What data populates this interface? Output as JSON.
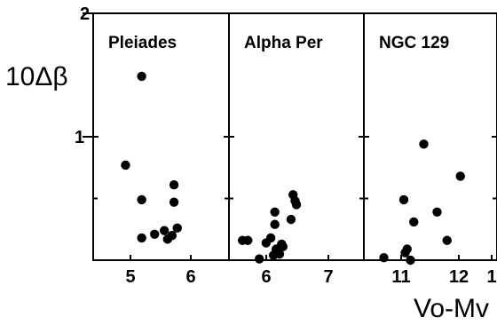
{
  "chart_data": {
    "type": "scatter",
    "ylabel": "10Δβ",
    "xlabel": "Vo-Mv",
    "y_ticks": [
      "2",
      "1"
    ],
    "ylim": [
      0,
      2
    ],
    "panels": [
      {
        "title": "Pleiades",
        "xlim": [
          4.5,
          6.6
        ],
        "x_ticks": [
          "5",
          "6"
        ],
        "points": [
          {
            "x": 5.0,
            "y": 0.77
          },
          {
            "x": 5.25,
            "y": 1.49
          },
          {
            "x": 5.25,
            "y": 0.49
          },
          {
            "x": 5.25,
            "y": 0.18
          },
          {
            "x": 5.45,
            "y": 0.21
          },
          {
            "x": 5.6,
            "y": 0.24
          },
          {
            "x": 5.65,
            "y": 0.17
          },
          {
            "x": 5.72,
            "y": 0.2
          },
          {
            "x": 5.75,
            "y": 0.47
          },
          {
            "x": 5.75,
            "y": 0.61
          },
          {
            "x": 5.8,
            "y": 0.26
          }
        ]
      },
      {
        "title": "Alpha Per",
        "xlim": [
          5.6,
          7.6
        ],
        "x_ticks": [
          "6",
          "7"
        ],
        "points": [
          {
            "x": 5.8,
            "y": 0.16
          },
          {
            "x": 5.88,
            "y": 0.16
          },
          {
            "x": 6.05,
            "y": 0.01
          },
          {
            "x": 6.15,
            "y": 0.14
          },
          {
            "x": 6.22,
            "y": 0.18
          },
          {
            "x": 6.26,
            "y": 0.04
          },
          {
            "x": 6.28,
            "y": 0.29
          },
          {
            "x": 6.28,
            "y": 0.39
          },
          {
            "x": 6.3,
            "y": 0.09
          },
          {
            "x": 6.35,
            "y": 0.05
          },
          {
            "x": 6.38,
            "y": 0.13
          },
          {
            "x": 6.4,
            "y": 0.11
          },
          {
            "x": 6.52,
            "y": 0.33
          },
          {
            "x": 6.55,
            "y": 0.53
          },
          {
            "x": 6.58,
            "y": 0.48
          },
          {
            "x": 6.6,
            "y": 0.45
          }
        ]
      },
      {
        "title": "NGC 129",
        "xlim": [
          10.5,
          12.5
        ],
        "x_ticks": [
          "11",
          "12",
          "1"
        ],
        "points": [
          {
            "x": 10.8,
            "y": 0.02
          },
          {
            "x": 11.1,
            "y": 0.49
          },
          {
            "x": 11.12,
            "y": 0.06
          },
          {
            "x": 11.15,
            "y": 0.09
          },
          {
            "x": 11.2,
            "y": 0.0
          },
          {
            "x": 11.25,
            "y": 0.31
          },
          {
            "x": 11.4,
            "y": 0.94
          },
          {
            "x": 11.6,
            "y": 0.39
          },
          {
            "x": 11.75,
            "y": 0.16
          },
          {
            "x": 11.95,
            "y": 0.68
          }
        ]
      }
    ]
  }
}
